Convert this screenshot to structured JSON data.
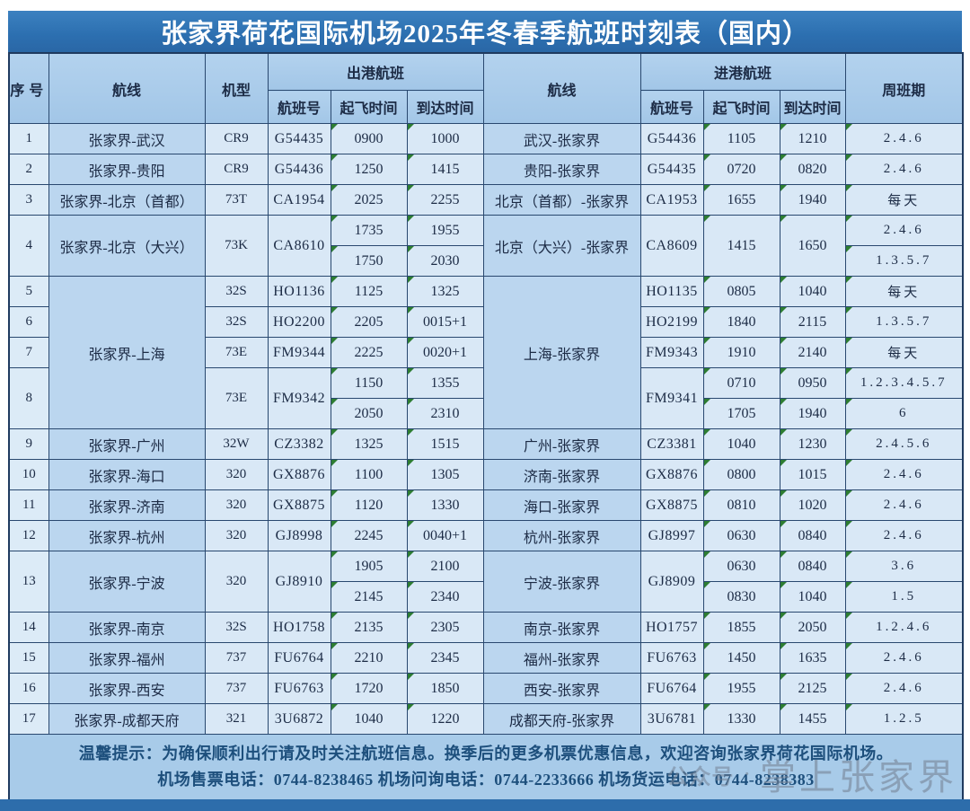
{
  "title": "张家界荷花国际机场2025年冬春季航班时刻表（国内）",
  "header": {
    "seq": "序号",
    "route": "航线",
    "model": "机型",
    "departure_group": "出港航班",
    "arrival_group": "进港航班",
    "flight_no": "航班号",
    "takeoff": "起飞时间",
    "arrive": "到达时间",
    "weekly": "周班期"
  },
  "colors": {
    "title_bar": "#2c6fb0",
    "header_cell": "#a2c6e7",
    "route_cell": "#bbd6ef",
    "data_cell": "#d9e8f6",
    "footer_band": "#a8cbe9",
    "border": "#29486f",
    "flag_green": "#2e7d32",
    "bottom_bar": "#2d6dab"
  },
  "table": {
    "rows": [
      [
        {
          "t": "1",
          "c": "seq"
        },
        {
          "t": "张家界-武汉",
          "c": "route"
        },
        {
          "t": "CR9",
          "c": "model"
        },
        {
          "t": "G54435",
          "c": "flight"
        },
        {
          "t": "0900",
          "c": "time",
          "f": 1
        },
        {
          "t": "1000",
          "c": "time",
          "f": 1
        },
        {
          "t": "武汉-张家界",
          "c": "route"
        },
        {
          "t": "G54436",
          "c": "flight"
        },
        {
          "t": "1105",
          "c": "time",
          "f": 1
        },
        {
          "t": "1210",
          "c": "time",
          "f": 1
        },
        {
          "t": "2.4.6",
          "c": "weekly",
          "f": 1
        }
      ],
      [
        {
          "t": "2",
          "c": "seq"
        },
        {
          "t": "张家界-贵阳",
          "c": "route"
        },
        {
          "t": "CR9",
          "c": "model"
        },
        {
          "t": "G54436",
          "c": "flight"
        },
        {
          "t": "1250",
          "c": "time",
          "f": 1
        },
        {
          "t": "1415",
          "c": "time",
          "f": 1
        },
        {
          "t": "贵阳-张家界",
          "c": "route"
        },
        {
          "t": "G54435",
          "c": "flight"
        },
        {
          "t": "0720",
          "c": "time",
          "f": 1
        },
        {
          "t": "0820",
          "c": "time",
          "f": 1
        },
        {
          "t": "2.4.6",
          "c": "weekly",
          "f": 1
        }
      ],
      [
        {
          "t": "3",
          "c": "seq"
        },
        {
          "t": "张家界-北京（首都）",
          "c": "route"
        },
        {
          "t": "73T",
          "c": "model"
        },
        {
          "t": "CA1954",
          "c": "flight"
        },
        {
          "t": "2025",
          "c": "time",
          "f": 1
        },
        {
          "t": "2255",
          "c": "time",
          "f": 1
        },
        {
          "t": "北京（首都）-张家界",
          "c": "route"
        },
        {
          "t": "CA1953",
          "c": "flight"
        },
        {
          "t": "1655",
          "c": "time",
          "f": 1
        },
        {
          "t": "1940",
          "c": "time",
          "f": 1
        },
        {
          "t": "每天",
          "c": "weekly",
          "f": 1
        }
      ],
      [
        {
          "t": "4",
          "c": "seq",
          "rs": 2
        },
        {
          "t": "张家界-北京（大兴）",
          "c": "route",
          "rs": 2
        },
        {
          "t": "73K",
          "c": "model",
          "rs": 2
        },
        {
          "t": "CA8610",
          "c": "flight",
          "rs": 2
        },
        {
          "t": "1735",
          "c": "time",
          "f": 1
        },
        {
          "t": "1955",
          "c": "time",
          "f": 1
        },
        {
          "t": "北京（大兴）-张家界",
          "c": "route",
          "rs": 2
        },
        {
          "t": "CA8609",
          "c": "flight",
          "rs": 2
        },
        {
          "t": "1415",
          "c": "time",
          "rs": 2,
          "f": 1
        },
        {
          "t": "1650",
          "c": "time",
          "rs": 2,
          "f": 1
        },
        {
          "t": "2.4.6",
          "c": "weekly",
          "f": 1
        }
      ],
      [
        {
          "t": "1750",
          "c": "time",
          "f": 1
        },
        {
          "t": "2030",
          "c": "time",
          "f": 1
        },
        {
          "t": "1.3.5.7",
          "c": "weekly",
          "f": 1
        }
      ],
      [
        {
          "t": "5",
          "c": "seq"
        },
        {
          "t": "张家界-上海",
          "c": "route",
          "rs": 5
        },
        {
          "t": "32S",
          "c": "model"
        },
        {
          "t": "HO1136",
          "c": "flight"
        },
        {
          "t": "1125",
          "c": "time",
          "f": 1
        },
        {
          "t": "1325",
          "c": "time",
          "f": 1
        },
        {
          "t": "上海-张家界",
          "c": "route",
          "rs": 5
        },
        {
          "t": "HO1135",
          "c": "flight"
        },
        {
          "t": "0805",
          "c": "time",
          "f": 1
        },
        {
          "t": "1040",
          "c": "time",
          "f": 1
        },
        {
          "t": "每天",
          "c": "weekly",
          "f": 1
        }
      ],
      [
        {
          "t": "6",
          "c": "seq"
        },
        {
          "t": "32S",
          "c": "model"
        },
        {
          "t": "HO2200",
          "c": "flight"
        },
        {
          "t": "2205",
          "c": "time",
          "f": 1
        },
        {
          "t": "0015+1",
          "c": "time",
          "f": 1
        },
        {
          "t": "HO2199",
          "c": "flight"
        },
        {
          "t": "1840",
          "c": "time",
          "f": 1
        },
        {
          "t": "2115",
          "c": "time",
          "f": 1
        },
        {
          "t": "1.3.5.7",
          "c": "weekly",
          "f": 1
        }
      ],
      [
        {
          "t": "7",
          "c": "seq"
        },
        {
          "t": "73E",
          "c": "model"
        },
        {
          "t": "FM9344",
          "c": "flight"
        },
        {
          "t": "2225",
          "c": "time",
          "f": 1
        },
        {
          "t": "0020+1",
          "c": "time",
          "f": 1
        },
        {
          "t": "FM9343",
          "c": "flight"
        },
        {
          "t": "1910",
          "c": "time",
          "f": 1
        },
        {
          "t": "2140",
          "c": "time",
          "f": 1
        },
        {
          "t": "每天",
          "c": "weekly",
          "f": 1
        }
      ],
      [
        {
          "t": "8",
          "c": "seq",
          "rs": 2
        },
        {
          "t": "73E",
          "c": "model",
          "rs": 2
        },
        {
          "t": "FM9342",
          "c": "flight",
          "rs": 2
        },
        {
          "t": "1150",
          "c": "time",
          "f": 1
        },
        {
          "t": "1355",
          "c": "time",
          "f": 1
        },
        {
          "t": "FM9341",
          "c": "flight",
          "rs": 2
        },
        {
          "t": "0710",
          "c": "time",
          "f": 1
        },
        {
          "t": "0950",
          "c": "time",
          "f": 1
        },
        {
          "t": "1.2.3.4.5.7",
          "c": "weekly",
          "f": 1
        }
      ],
      [
        {
          "t": "2050",
          "c": "time",
          "f": 1
        },
        {
          "t": "2310",
          "c": "time",
          "f": 1
        },
        {
          "t": "1705",
          "c": "time",
          "f": 1
        },
        {
          "t": "1940",
          "c": "time",
          "f": 1
        },
        {
          "t": "6",
          "c": "weekly",
          "f": 1
        }
      ],
      [
        {
          "t": "9",
          "c": "seq"
        },
        {
          "t": "张家界-广州",
          "c": "route"
        },
        {
          "t": "32W",
          "c": "model"
        },
        {
          "t": "CZ3382",
          "c": "flight"
        },
        {
          "t": "1325",
          "c": "time",
          "f": 1
        },
        {
          "t": "1515",
          "c": "time",
          "f": 1
        },
        {
          "t": "广州-张家界",
          "c": "route"
        },
        {
          "t": "CZ3381",
          "c": "flight"
        },
        {
          "t": "1040",
          "c": "time",
          "f": 1
        },
        {
          "t": "1230",
          "c": "time",
          "f": 1
        },
        {
          "t": "2.4.5.6",
          "c": "weekly",
          "f": 1
        }
      ],
      [
        {
          "t": "10",
          "c": "seq"
        },
        {
          "t": "张家界-海口",
          "c": "route"
        },
        {
          "t": "320",
          "c": "model"
        },
        {
          "t": "GX8876",
          "c": "flight"
        },
        {
          "t": "1100",
          "c": "time",
          "f": 1
        },
        {
          "t": "1305",
          "c": "time",
          "f": 1
        },
        {
          "t": "济南-张家界",
          "c": "route"
        },
        {
          "t": "GX8876",
          "c": "flight"
        },
        {
          "t": "0800",
          "c": "time",
          "f": 1
        },
        {
          "t": "1015",
          "c": "time",
          "f": 1
        },
        {
          "t": "2.4.6",
          "c": "weekly",
          "f": 1
        }
      ],
      [
        {
          "t": "11",
          "c": "seq"
        },
        {
          "t": "张家界-济南",
          "c": "route"
        },
        {
          "t": "320",
          "c": "model"
        },
        {
          "t": "GX8875",
          "c": "flight"
        },
        {
          "t": "1120",
          "c": "time",
          "f": 1
        },
        {
          "t": "1330",
          "c": "time",
          "f": 1
        },
        {
          "t": "海口-张家界",
          "c": "route"
        },
        {
          "t": "GX8875",
          "c": "flight"
        },
        {
          "t": "0810",
          "c": "time",
          "f": 1
        },
        {
          "t": "1020",
          "c": "time",
          "f": 1
        },
        {
          "t": "2.4.6",
          "c": "weekly",
          "f": 1
        }
      ],
      [
        {
          "t": "12",
          "c": "seq"
        },
        {
          "t": "张家界-杭州",
          "c": "route"
        },
        {
          "t": "320",
          "c": "model"
        },
        {
          "t": "GJ8998",
          "c": "flight"
        },
        {
          "t": "2245",
          "c": "time",
          "f": 1
        },
        {
          "t": "0040+1",
          "c": "time",
          "f": 1
        },
        {
          "t": "杭州-张家界",
          "c": "route"
        },
        {
          "t": "GJ8997",
          "c": "flight"
        },
        {
          "t": "0630",
          "c": "time",
          "f": 1
        },
        {
          "t": "0840",
          "c": "time",
          "f": 1
        },
        {
          "t": "2.4.6",
          "c": "weekly",
          "f": 1
        }
      ],
      [
        {
          "t": "13",
          "c": "seq",
          "rs": 2
        },
        {
          "t": "张家界-宁波",
          "c": "route",
          "rs": 2
        },
        {
          "t": "320",
          "c": "model",
          "rs": 2
        },
        {
          "t": "GJ8910",
          "c": "flight",
          "rs": 2
        },
        {
          "t": "1905",
          "c": "time",
          "f": 1
        },
        {
          "t": "2100",
          "c": "time",
          "f": 1
        },
        {
          "t": "宁波-张家界",
          "c": "route",
          "rs": 2
        },
        {
          "t": "GJ8909",
          "c": "flight",
          "rs": 2
        },
        {
          "t": "0630",
          "c": "time",
          "f": 1
        },
        {
          "t": "0840",
          "c": "time",
          "f": 1
        },
        {
          "t": "3.6",
          "c": "weekly",
          "f": 1
        }
      ],
      [
        {
          "t": "2145",
          "c": "time",
          "f": 1
        },
        {
          "t": "2340",
          "c": "time",
          "f": 1
        },
        {
          "t": "0830",
          "c": "time",
          "f": 1
        },
        {
          "t": "1040",
          "c": "time",
          "f": 1
        },
        {
          "t": "1.5",
          "c": "weekly",
          "f": 1
        }
      ],
      [
        {
          "t": "14",
          "c": "seq"
        },
        {
          "t": "张家界-南京",
          "c": "route"
        },
        {
          "t": "32S",
          "c": "model"
        },
        {
          "t": "HO1758",
          "c": "flight"
        },
        {
          "t": "2135",
          "c": "time",
          "f": 1
        },
        {
          "t": "2305",
          "c": "time",
          "f": 1
        },
        {
          "t": "南京-张家界",
          "c": "route"
        },
        {
          "t": "HO1757",
          "c": "flight"
        },
        {
          "t": "1855",
          "c": "time",
          "f": 1
        },
        {
          "t": "2050",
          "c": "time",
          "f": 1
        },
        {
          "t": "1.2.4.6",
          "c": "weekly",
          "f": 1
        }
      ],
      [
        {
          "t": "15",
          "c": "seq"
        },
        {
          "t": "张家界-福州",
          "c": "route"
        },
        {
          "t": "737",
          "c": "model"
        },
        {
          "t": "FU6764",
          "c": "flight"
        },
        {
          "t": "2210",
          "c": "time",
          "f": 1
        },
        {
          "t": "2345",
          "c": "time",
          "f": 1
        },
        {
          "t": "福州-张家界",
          "c": "route"
        },
        {
          "t": "FU6763",
          "c": "flight"
        },
        {
          "t": "1450",
          "c": "time",
          "f": 1
        },
        {
          "t": "1635",
          "c": "time",
          "f": 1
        },
        {
          "t": "2.4.6",
          "c": "weekly",
          "f": 1
        }
      ],
      [
        {
          "t": "16",
          "c": "seq"
        },
        {
          "t": "张家界-西安",
          "c": "route"
        },
        {
          "t": "737",
          "c": "model"
        },
        {
          "t": "FU6763",
          "c": "flight"
        },
        {
          "t": "1720",
          "c": "time",
          "f": 1
        },
        {
          "t": "1850",
          "c": "time",
          "f": 1
        },
        {
          "t": "西安-张家界",
          "c": "route"
        },
        {
          "t": "FU6764",
          "c": "flight"
        },
        {
          "t": "1955",
          "c": "time",
          "f": 1
        },
        {
          "t": "2125",
          "c": "time",
          "f": 1
        },
        {
          "t": "2.4.6",
          "c": "weekly",
          "f": 1
        }
      ],
      [
        {
          "t": "17",
          "c": "seq"
        },
        {
          "t": "张家界-成都天府",
          "c": "route"
        },
        {
          "t": "321",
          "c": "model"
        },
        {
          "t": "3U6872",
          "c": "flight"
        },
        {
          "t": "1040",
          "c": "time",
          "f": 1
        },
        {
          "t": "1220",
          "c": "time",
          "f": 1
        },
        {
          "t": "成都天府-张家界",
          "c": "route"
        },
        {
          "t": "3U6781",
          "c": "flight"
        },
        {
          "t": "1330",
          "c": "time",
          "f": 1
        },
        {
          "t": "1455",
          "c": "time",
          "f": 1
        },
        {
          "t": "1.2.5",
          "c": "weekly",
          "f": 1
        }
      ]
    ]
  },
  "footer": {
    "line1": "温馨提示：为确保顺利出行请及时关注航班信息。换季后的更多机票优惠信息，欢迎咨询张家界荷花国际机场。",
    "line2": "机场售票电话：0744-8238465  机场问询电话：0744-2233666  机场货运电话：0744-8238383"
  },
  "watermark": {
    "logo": "公众号",
    "dot": "·",
    "text": "掌上张家界"
  }
}
